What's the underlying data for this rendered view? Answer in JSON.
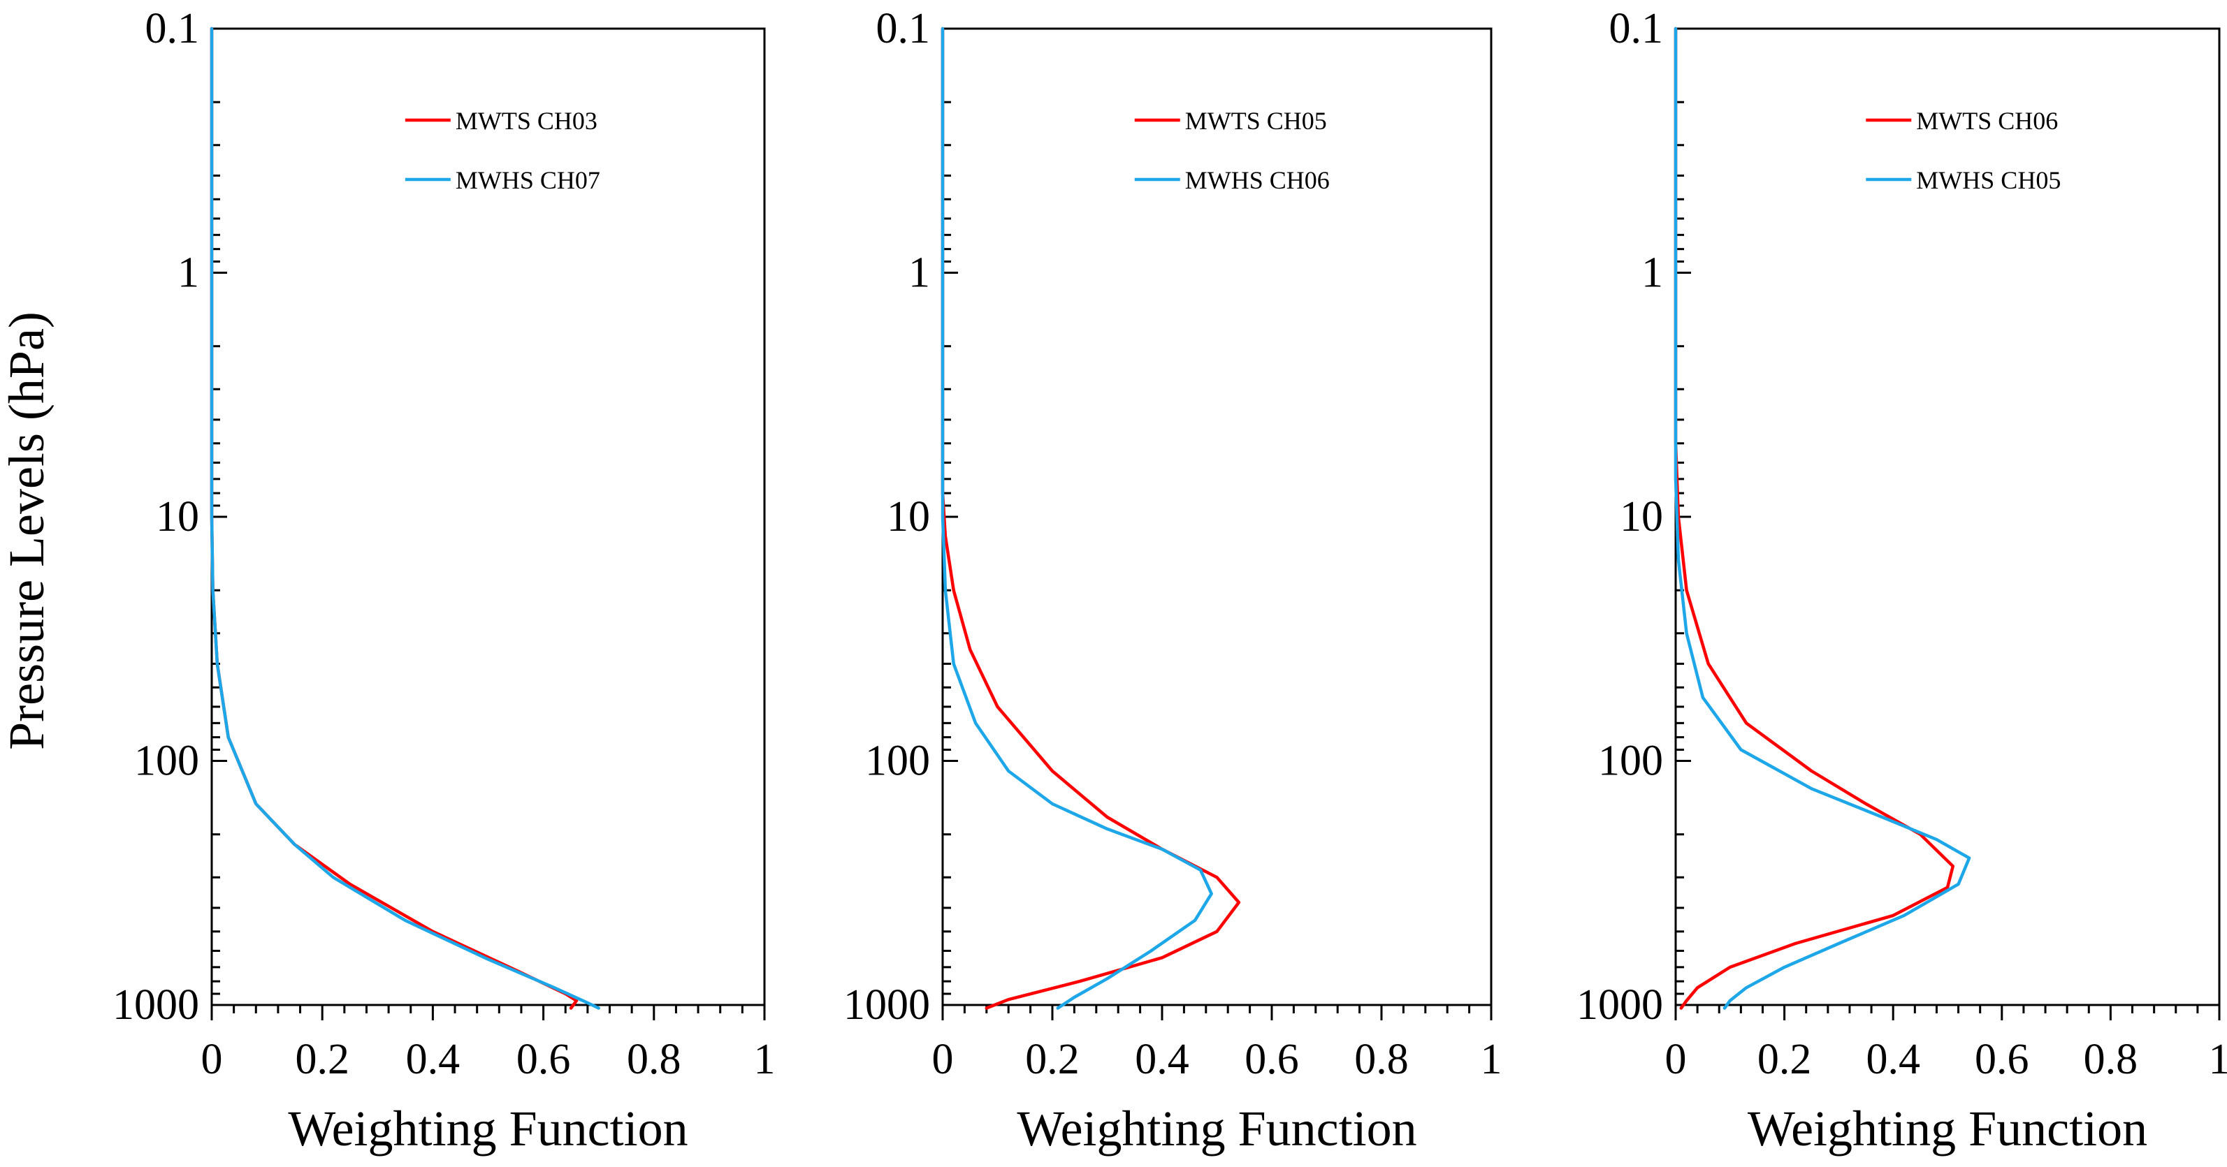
{
  "figure": {
    "ylabel": "Pressure Levels (hPa)"
  },
  "chart_data": [
    {
      "type": "line",
      "title": "",
      "xlabel": "Weighting Function",
      "ylabel": "Pressure Levels (hPa)",
      "xlim": [
        0,
        1
      ],
      "ylim": [
        1000,
        0.1
      ],
      "yscale": "log",
      "xticks": [
        "0",
        "0.2",
        "0.4",
        "0.6",
        "0.8",
        "1"
      ],
      "yticks": [
        "0.1",
        "1",
        "10",
        "100",
        "1000"
      ],
      "legend_position": "top-right",
      "series": [
        {
          "name": "MWTS CH03",
          "color": "#ff0000",
          "points": [
            [
              0,
              0.1
            ],
            [
              0,
              1
            ],
            [
              0,
              10
            ],
            [
              0.002,
              20
            ],
            [
              0.01,
              40
            ],
            [
              0.03,
              80
            ],
            [
              0.08,
              150
            ],
            [
              0.15,
              220
            ],
            [
              0.25,
              320
            ],
            [
              0.4,
              500
            ],
            [
              0.55,
              720
            ],
            [
              0.64,
              900
            ],
            [
              0.66,
              960
            ],
            [
              0.65,
              1030
            ]
          ]
        },
        {
          "name": "MWHS CH07",
          "color": "#1ea7e8",
          "points": [
            [
              0,
              0.1
            ],
            [
              0,
              1
            ],
            [
              0,
              10
            ],
            [
              0.002,
              20
            ],
            [
              0.01,
              40
            ],
            [
              0.03,
              80
            ],
            [
              0.08,
              150
            ],
            [
              0.15,
              220
            ],
            [
              0.22,
              300
            ],
            [
              0.35,
              450
            ],
            [
              0.5,
              650
            ],
            [
              0.62,
              850
            ],
            [
              0.68,
              980
            ],
            [
              0.7,
              1030
            ]
          ]
        }
      ]
    },
    {
      "type": "line",
      "title": "",
      "xlabel": "Weighting Function",
      "ylabel": "",
      "xlim": [
        0,
        1
      ],
      "ylim": [
        1000,
        0.1
      ],
      "yscale": "log",
      "xticks": [
        "0",
        "0.2",
        "0.4",
        "0.6",
        "0.8",
        "1"
      ],
      "yticks": [
        "0.1",
        "1",
        "10",
        "100",
        "1000"
      ],
      "legend_position": "top-right",
      "series": [
        {
          "name": "MWTS CH05",
          "color": "#ff0000",
          "points": [
            [
              0,
              0.1
            ],
            [
              0,
              1
            ],
            [
              0,
              8
            ],
            [
              0.005,
              12
            ],
            [
              0.02,
              20
            ],
            [
              0.05,
              35
            ],
            [
              0.1,
              60
            ],
            [
              0.2,
              110
            ],
            [
              0.3,
              170
            ],
            [
              0.4,
              230
            ],
            [
              0.5,
              300
            ],
            [
              0.54,
              380
            ],
            [
              0.5,
              500
            ],
            [
              0.4,
              640
            ],
            [
              0.25,
              800
            ],
            [
              0.12,
              950
            ],
            [
              0.08,
              1030
            ]
          ]
        },
        {
          "name": "MWHS CH06",
          "color": "#1ea7e8",
          "points": [
            [
              0,
              0.1
            ],
            [
              0,
              1
            ],
            [
              0,
              10
            ],
            [
              0.005,
              20
            ],
            [
              0.02,
              40
            ],
            [
              0.06,
              70
            ],
            [
              0.12,
              110
            ],
            [
              0.2,
              150
            ],
            [
              0.3,
              190
            ],
            [
              0.4,
              230
            ],
            [
              0.47,
              280
            ],
            [
              0.49,
              350
            ],
            [
              0.46,
              450
            ],
            [
              0.38,
              600
            ],
            [
              0.3,
              780
            ],
            [
              0.24,
              930
            ],
            [
              0.21,
              1030
            ]
          ]
        }
      ]
    },
    {
      "type": "line",
      "title": "",
      "xlabel": "Weighting Function",
      "ylabel": "",
      "xlim": [
        0,
        1
      ],
      "ylim": [
        1000,
        0.1
      ],
      "yscale": "log",
      "xticks": [
        "0",
        "0.2",
        "0.4",
        "0.6",
        "0.8",
        "1"
      ],
      "yticks": [
        "0.1",
        "1",
        "10",
        "100",
        "1000"
      ],
      "legend_position": "top-right",
      "series": [
        {
          "name": "MWTS CH06",
          "color": "#ff0000",
          "points": [
            [
              0,
              0.1
            ],
            [
              0,
              1
            ],
            [
              0,
              5
            ],
            [
              0.005,
              10
            ],
            [
              0.02,
              20
            ],
            [
              0.06,
              40
            ],
            [
              0.13,
              70
            ],
            [
              0.25,
              110
            ],
            [
              0.35,
              150
            ],
            [
              0.45,
              200
            ],
            [
              0.51,
              270
            ],
            [
              0.5,
              330
            ],
            [
              0.4,
              430
            ],
            [
              0.22,
              560
            ],
            [
              0.1,
              700
            ],
            [
              0.04,
              850
            ],
            [
              0.02,
              960
            ],
            [
              0.01,
              1030
            ]
          ]
        },
        {
          "name": "MWHS CH05",
          "color": "#1ea7e8",
          "points": [
            [
              0,
              0.1
            ],
            [
              0,
              1
            ],
            [
              0,
              7
            ],
            [
              0.005,
              15
            ],
            [
              0.02,
              30
            ],
            [
              0.05,
              55
            ],
            [
              0.12,
              90
            ],
            [
              0.25,
              130
            ],
            [
              0.38,
              170
            ],
            [
              0.48,
              210
            ],
            [
              0.54,
              250
            ],
            [
              0.52,
              320
            ],
            [
              0.42,
              430
            ],
            [
              0.3,
              560
            ],
            [
              0.2,
              700
            ],
            [
              0.13,
              850
            ],
            [
              0.1,
              960
            ],
            [
              0.09,
              1030
            ]
          ]
        }
      ]
    }
  ]
}
